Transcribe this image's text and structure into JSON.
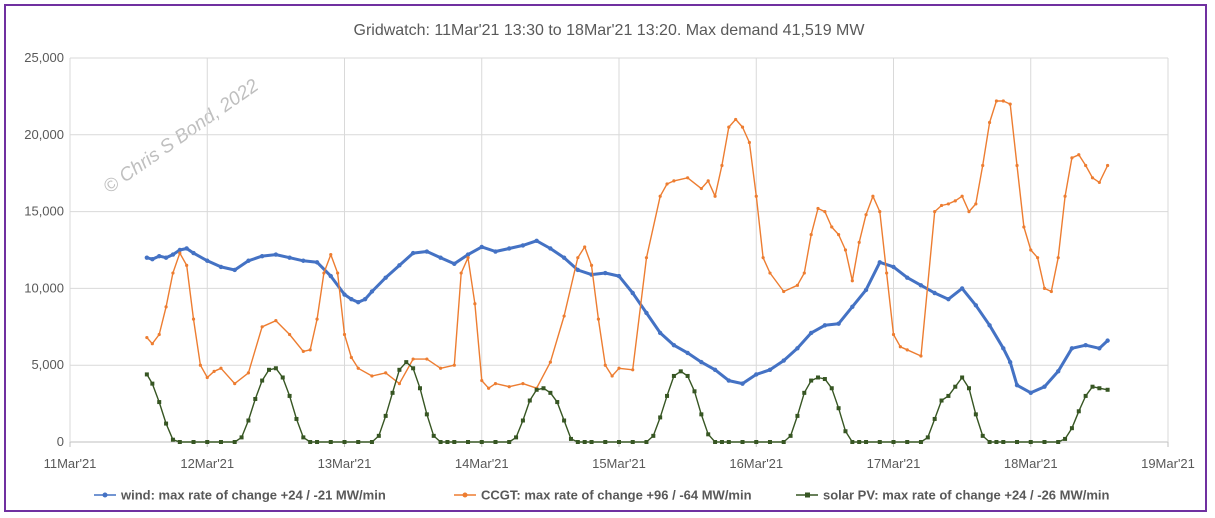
{
  "chart_data": {
    "type": "line",
    "title": "Gridwatch:  11Mar'21 13:30  to 18Mar'21 13:20.   Max demand 41,519 MW",
    "watermark": "© Chris S Bond, 2022",
    "x_ticks": [
      "11Mar'21",
      "12Mar'21",
      "13Mar'21",
      "14Mar'21",
      "15Mar'21",
      "16Mar'21",
      "17Mar'21",
      "18Mar'21",
      "19Mar'21"
    ],
    "y_ticks": [
      "0",
      "5,000",
      "10,000",
      "15,000",
      "20,000",
      "25,000"
    ],
    "ylim": [
      0,
      25000
    ],
    "xlim_days": [
      0,
      8
    ],
    "grid": true,
    "legend_position": "bottom",
    "series": [
      {
        "name": "wind: max rate of change +24 / -21 MW/min",
        "color": "#4472c4",
        "x": [
          0.56,
          0.6,
          0.65,
          0.7,
          0.75,
          0.8,
          0.85,
          0.9,
          1.0,
          1.1,
          1.2,
          1.3,
          1.4,
          1.5,
          1.6,
          1.7,
          1.8,
          1.9,
          2.0,
          2.05,
          2.1,
          2.15,
          2.2,
          2.3,
          2.4,
          2.5,
          2.6,
          2.7,
          2.8,
          2.9,
          3.0,
          3.1,
          3.2,
          3.3,
          3.4,
          3.5,
          3.6,
          3.7,
          3.8,
          3.9,
          4.0,
          4.1,
          4.2,
          4.3,
          4.4,
          4.5,
          4.6,
          4.7,
          4.8,
          4.9,
          5.0,
          5.1,
          5.2,
          5.3,
          5.4,
          5.5,
          5.6,
          5.7,
          5.8,
          5.9,
          6.0,
          6.1,
          6.2,
          6.3,
          6.4,
          6.5,
          6.6,
          6.7,
          6.8,
          6.85,
          6.9,
          7.0,
          7.1,
          7.2,
          7.3,
          7.4,
          7.5,
          7.56
        ],
        "y": [
          12000,
          11900,
          12100,
          12000,
          12200,
          12500,
          12600,
          12300,
          11800,
          11400,
          11200,
          11800,
          12100,
          12200,
          12000,
          11800,
          11700,
          10800,
          9600,
          9300,
          9100,
          9300,
          9800,
          10700,
          11500,
          12300,
          12400,
          12000,
          11600,
          12200,
          12700,
          12400,
          12600,
          12800,
          13100,
          12600,
          12000,
          11200,
          10900,
          11000,
          10800,
          9700,
          8400,
          7100,
          6300,
          5800,
          5200,
          4700,
          4000,
          3800,
          4400,
          4700,
          5300,
          6100,
          7100,
          7600,
          7700,
          8800,
          9900,
          11700,
          11400,
          10700,
          10200,
          9700,
          9300,
          10000,
          8900,
          7600,
          6100,
          5200,
          3700,
          3200,
          3600,
          4600,
          6100,
          6300,
          6100,
          6600
        ]
      },
      {
        "name": "CCGT: max rate of change +96 / -64 MW/min",
        "color": "#ed7d31",
        "x": [
          0.56,
          0.6,
          0.65,
          0.7,
          0.75,
          0.8,
          0.85,
          0.9,
          0.95,
          1.0,
          1.05,
          1.1,
          1.2,
          1.3,
          1.4,
          1.5,
          1.6,
          1.7,
          1.75,
          1.8,
          1.85,
          1.9,
          1.95,
          2.0,
          2.05,
          2.1,
          2.2,
          2.3,
          2.4,
          2.5,
          2.6,
          2.7,
          2.8,
          2.85,
          2.9,
          2.95,
          3.0,
          3.05,
          3.1,
          3.2,
          3.3,
          3.4,
          3.5,
          3.6,
          3.7,
          3.75,
          3.8,
          3.85,
          3.9,
          3.95,
          4.0,
          4.1,
          4.2,
          4.3,
          4.35,
          4.4,
          4.5,
          4.6,
          4.65,
          4.7,
          4.75,
          4.8,
          4.85,
          4.9,
          4.95,
          5.0,
          5.05,
          5.1,
          5.2,
          5.3,
          5.35,
          5.4,
          5.45,
          5.5,
          5.55,
          5.6,
          5.65,
          5.7,
          5.75,
          5.8,
          5.85,
          5.9,
          5.95,
          6.0,
          6.05,
          6.1,
          6.2,
          6.3,
          6.35,
          6.4,
          6.45,
          6.5,
          6.55,
          6.6,
          6.65,
          6.7,
          6.75,
          6.8,
          6.85,
          6.9,
          6.95,
          7.0,
          7.05,
          7.1,
          7.15,
          7.2,
          7.25,
          7.3,
          7.35,
          7.4,
          7.45,
          7.5,
          7.56
        ],
        "y": [
          6800,
          6400,
          7000,
          8800,
          11000,
          12300,
          11500,
          8000,
          5000,
          4200,
          4600,
          4800,
          3800,
          4500,
          7500,
          7900,
          7000,
          5900,
          6000,
          8000,
          11000,
          12200,
          11000,
          7000,
          5500,
          4800,
          4300,
          4500,
          3800,
          5400,
          5400,
          4800,
          5000,
          11000,
          12000,
          9000,
          4000,
          3500,
          3800,
          3600,
          3800,
          3500,
          5200,
          8200,
          12000,
          12700,
          11500,
          8000,
          5000,
          4300,
          4800,
          4700,
          12000,
          16000,
          16800,
          17000,
          17200,
          16500,
          17000,
          16000,
          18000,
          20500,
          21000,
          20500,
          19500,
          16000,
          12000,
          11000,
          9800,
          10200,
          11000,
          13500,
          15200,
          15000,
          14000,
          13500,
          12500,
          10500,
          13000,
          14800,
          16000,
          15000,
          11000,
          7000,
          6200,
          6000,
          5600,
          15000,
          15400,
          15500,
          15700,
          16000,
          15000,
          15500,
          18000,
          20800,
          22200,
          22200,
          22000,
          18000,
          14000,
          12500,
          12000,
          10000,
          9800,
          12000,
          16000,
          18500,
          18700,
          18000,
          17200,
          16900,
          18000
        ]
      },
      {
        "name": "solar PV: max rate of change +24 / -26 MW/min",
        "color": "#375623",
        "x": [
          0.56,
          0.6,
          0.65,
          0.7,
          0.75,
          0.8,
          0.9,
          1.0,
          1.1,
          1.2,
          1.25,
          1.3,
          1.35,
          1.4,
          1.45,
          1.5,
          1.55,
          1.6,
          1.65,
          1.7,
          1.75,
          1.8,
          1.9,
          2.0,
          2.1,
          2.2,
          2.25,
          2.3,
          2.35,
          2.4,
          2.45,
          2.5,
          2.55,
          2.6,
          2.65,
          2.7,
          2.75,
          2.8,
          2.9,
          3.0,
          3.1,
          3.2,
          3.25,
          3.3,
          3.35,
          3.4,
          3.45,
          3.5,
          3.55,
          3.6,
          3.65,
          3.7,
          3.75,
          3.8,
          3.9,
          4.0,
          4.1,
          4.2,
          4.25,
          4.3,
          4.35,
          4.4,
          4.45,
          4.5,
          4.55,
          4.6,
          4.65,
          4.7,
          4.75,
          4.8,
          4.9,
          5.0,
          5.1,
          5.2,
          5.25,
          5.3,
          5.35,
          5.4,
          5.45,
          5.5,
          5.55,
          5.6,
          5.65,
          5.7,
          5.75,
          5.8,
          5.9,
          6.0,
          6.1,
          6.2,
          6.25,
          6.3,
          6.35,
          6.4,
          6.45,
          6.5,
          6.55,
          6.6,
          6.65,
          6.7,
          6.75,
          6.8,
          6.9,
          7.0,
          7.1,
          7.2,
          7.25,
          7.3,
          7.35,
          7.4,
          7.45,
          7.5,
          7.56
        ],
        "y": [
          4400,
          3800,
          2600,
          1200,
          150,
          0,
          0,
          0,
          0,
          0,
          300,
          1400,
          2800,
          4000,
          4700,
          4800,
          4200,
          3000,
          1500,
          300,
          0,
          0,
          0,
          0,
          0,
          0,
          400,
          1700,
          3200,
          4700,
          5200,
          4800,
          3500,
          1800,
          400,
          0,
          0,
          0,
          0,
          0,
          0,
          0,
          300,
          1400,
          2700,
          3400,
          3500,
          3200,
          2600,
          1400,
          200,
          0,
          0,
          0,
          0,
          0,
          0,
          0,
          400,
          1600,
          3000,
          4300,
          4600,
          4300,
          3300,
          1800,
          500,
          0,
          0,
          0,
          0,
          0,
          0,
          0,
          400,
          1700,
          3200,
          4000,
          4200,
          4100,
          3500,
          2200,
          700,
          0,
          0,
          0,
          0,
          0,
          0,
          0,
          300,
          1500,
          2700,
          3000,
          3600,
          4200,
          3500,
          1800,
          400,
          0,
          0,
          0,
          0,
          0,
          0,
          0,
          200,
          900,
          2000,
          3000,
          3600,
          3500,
          3400
        ]
      }
    ]
  }
}
